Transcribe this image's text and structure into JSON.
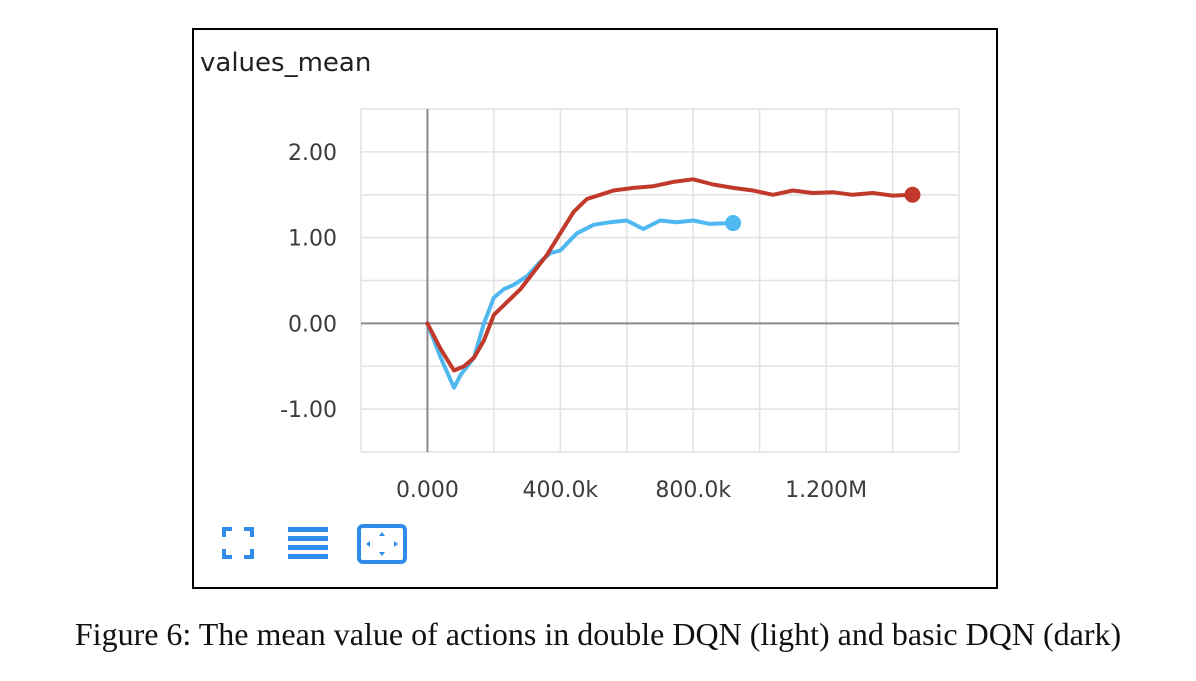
{
  "chart_data": {
    "type": "line",
    "title": "values_mean",
    "xlabel": "",
    "ylabel": "",
    "xlim": [
      -200000,
      1600000
    ],
    "ylim": [
      -1.5,
      2.5
    ],
    "x_ticks": [
      {
        "value": 0,
        "label": "0.000"
      },
      {
        "value": 400000,
        "label": "400.0k"
      },
      {
        "value": 800000,
        "label": "800.0k"
      },
      {
        "value": 1200000,
        "label": "1.200M"
      }
    ],
    "y_ticks": [
      {
        "value": 2,
        "label": "2.00"
      },
      {
        "value": 1,
        "label": "1.00"
      },
      {
        "value": 0,
        "label": "0.00"
      },
      {
        "value": -1,
        "label": "-1.00"
      }
    ],
    "grid": true,
    "series": [
      {
        "color": "#4fb8f0",
        "x": [
          0,
          40000,
          80000,
          100000,
          140000,
          170000,
          200000,
          230000,
          260000,
          300000,
          340000,
          370000,
          400000,
          450000,
          500000,
          550000,
          600000,
          650000,
          700000,
          750000,
          800000,
          850000,
          920000
        ],
        "y": [
          0.0,
          -0.4,
          -0.75,
          -0.6,
          -0.4,
          0.0,
          0.3,
          0.4,
          0.45,
          0.55,
          0.72,
          0.82,
          0.85,
          1.05,
          1.15,
          1.18,
          1.2,
          1.1,
          1.2,
          1.18,
          1.2,
          1.16,
          1.17
        ]
      },
      {
        "color": "#c0392b",
        "x": [
          0,
          40000,
          80000,
          110000,
          140000,
          170000,
          200000,
          240000,
          280000,
          320000,
          360000,
          400000,
          440000,
          480000,
          520000,
          560000,
          620000,
          680000,
          740000,
          800000,
          860000,
          920000,
          980000,
          1040000,
          1100000,
          1160000,
          1220000,
          1280000,
          1340000,
          1400000,
          1460000
        ],
        "y": [
          0.0,
          -0.3,
          -0.55,
          -0.5,
          -0.4,
          -0.2,
          0.1,
          0.25,
          0.4,
          0.6,
          0.8,
          1.05,
          1.3,
          1.45,
          1.5,
          1.55,
          1.58,
          1.6,
          1.65,
          1.68,
          1.62,
          1.58,
          1.55,
          1.5,
          1.55,
          1.52,
          1.53,
          1.5,
          1.52,
          1.49,
          1.5
        ]
      }
    ]
  },
  "toolbar": {
    "icons": [
      "expand-icon",
      "list-icon",
      "fit-domain-icon"
    ],
    "accent_color": "#2f8ce8"
  },
  "caption": "Figure 6: The mean value of actions in double DQN (light) and basic DQN (dark)"
}
